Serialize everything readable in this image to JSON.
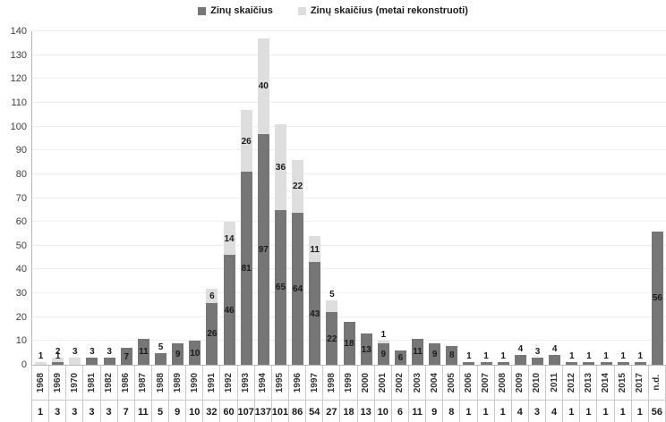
{
  "legend": {
    "items": [
      {
        "label": "Zinų skaičius",
        "color": "#767676"
      },
      {
        "label": "Zinų skaičius (metai rekonstruoti)",
        "color": "#dedede"
      }
    ]
  },
  "chart_data": {
    "type": "bar",
    "stacked": true,
    "title": "",
    "xlabel": "",
    "ylabel": "",
    "ylim": [
      0,
      140
    ],
    "ytick_step": 10,
    "yticks": [
      0,
      10,
      20,
      30,
      40,
      50,
      60,
      70,
      80,
      90,
      100,
      110,
      120,
      130,
      140
    ],
    "grid": true,
    "legend_position": "top",
    "categories": [
      "1968",
      "1969",
      "1970",
      "1981",
      "1982",
      "1986",
      "1987",
      "1988",
      "1989",
      "1990",
      "1991",
      "1992",
      "1993",
      "1994",
      "1995",
      "1996",
      "1997",
      "1998",
      "1999",
      "2000",
      "2001",
      "2002",
      "2003",
      "2004",
      "2005",
      "2006",
      "2007",
      "2008",
      "2009",
      "2010",
      "2011",
      "2012",
      "2013",
      "2014",
      "2015",
      "2017",
      "n.d."
    ],
    "series": [
      {
        "name": "Zinų skaičius",
        "color": "#767676",
        "values": [
          0,
          1,
          0,
          3,
          3,
          7,
          11,
          5,
          9,
          10,
          26,
          46,
          81,
          97,
          65,
          64,
          43,
          22,
          18,
          13,
          9,
          6,
          11,
          9,
          8,
          1,
          1,
          1,
          4,
          3,
          4,
          1,
          1,
          1,
          1,
          1,
          56
        ]
      },
      {
        "name": "Zinų skaičius (metai rekonstruoti)",
        "color": "#dedede",
        "values": [
          1,
          2,
          3,
          0,
          0,
          0,
          0,
          0,
          0,
          0,
          6,
          14,
          26,
          40,
          36,
          22,
          11,
          5,
          0,
          0,
          1,
          0,
          0,
          0,
          0,
          0,
          0,
          0,
          0,
          0,
          0,
          0,
          0,
          0,
          0,
          0,
          0
        ]
      }
    ],
    "totals": [
      1,
      3,
      3,
      3,
      3,
      7,
      11,
      5,
      9,
      10,
      32,
      60,
      107,
      137,
      101,
      86,
      54,
      27,
      18,
      13,
      10,
      6,
      11,
      9,
      8,
      1,
      1,
      1,
      4,
      3,
      4,
      1,
      1,
      1,
      1,
      1,
      56
    ]
  }
}
